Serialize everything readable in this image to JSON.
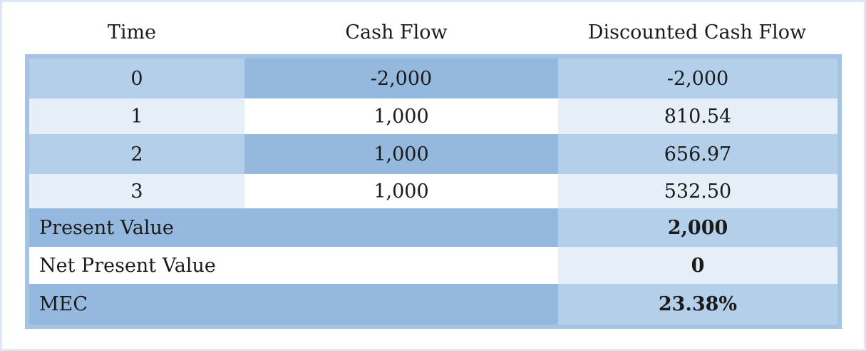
{
  "table": {
    "headers": [
      "Time",
      "Cash Flow",
      "Discounted Cash Flow"
    ],
    "rows": [
      {
        "time": "0",
        "cash_flow": "-2,000",
        "discounted": "-2,000"
      },
      {
        "time": "1",
        "cash_flow": "1,000",
        "discounted": "810.54"
      },
      {
        "time": "2",
        "cash_flow": "1,000",
        "discounted": "656.97"
      },
      {
        "time": "3",
        "cash_flow": "1,000",
        "discounted": "532.50"
      }
    ],
    "summary": [
      {
        "label": "Present Value",
        "value": "2,000"
      },
      {
        "label": "Net Present Value",
        "value": "0"
      },
      {
        "label": "MEC",
        "value": "23.38%"
      }
    ]
  }
}
